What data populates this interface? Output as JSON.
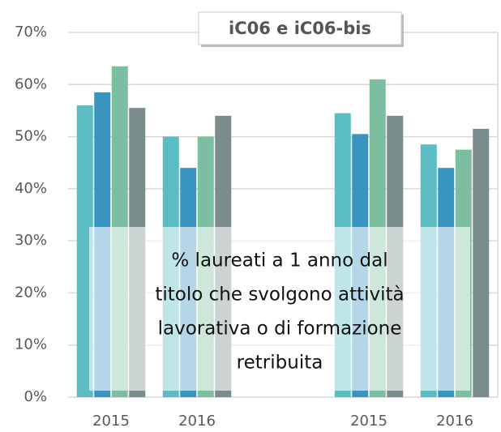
{
  "chart_data": {
    "type": "bar",
    "title": "iC06 e iC06-bis",
    "annotation": [
      "% laureati a 1 anno dal",
      "titolo che svolgono attività",
      "lavorativa o di formazione",
      "retribuita"
    ],
    "categories": [
      "2015",
      "2016",
      null,
      "2015",
      "2016"
    ],
    "series": [
      {
        "color": "#5bbcc4",
        "values": [
          56,
          50,
          null,
          54.5,
          48.5
        ]
      },
      {
        "color": "#3a94c0",
        "values": [
          58.5,
          44,
          null,
          50.5,
          44
        ]
      },
      {
        "color": "#7bbfa0",
        "values": [
          63.5,
          50,
          null,
          61,
          47.5
        ]
      },
      {
        "color": "#7a8c8c",
        "values": [
          55.5,
          54,
          null,
          54,
          51.5
        ]
      }
    ],
    "ylim": [
      0,
      70
    ],
    "yticks": [
      {
        "value": 0,
        "label": "0%"
      },
      {
        "value": 10,
        "label": "10%"
      },
      {
        "value": 20,
        "label": "20%"
      },
      {
        "value": 30,
        "label": "30%"
      },
      {
        "value": 40,
        "label": "40%"
      },
      {
        "value": 50,
        "label": "50%"
      },
      {
        "value": 60,
        "label": "60%"
      },
      {
        "value": 70,
        "label": "70%"
      }
    ],
    "grid": true
  }
}
